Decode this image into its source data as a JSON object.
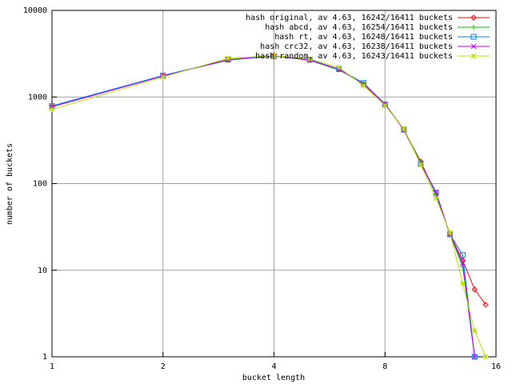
{
  "chart_data": {
    "type": "line",
    "xlabel": "bucket length",
    "ylabel": "number of buckets",
    "log_x": true,
    "log_y": true,
    "grid": true,
    "legend": "top-right",
    "xlim": [
      1,
      16
    ],
    "ylim": [
      1,
      10000
    ],
    "xticks": [
      1,
      2,
      4,
      8,
      16
    ],
    "yticks": [
      1,
      10,
      100,
      1000,
      10000
    ],
    "x": [
      1,
      2,
      3,
      4,
      5,
      6,
      7,
      8,
      9,
      10,
      11,
      12,
      13,
      14,
      15
    ],
    "series": [
      {
        "name": "hash original, av 4.63, 16242/16411 buckets",
        "color": "#ff0000",
        "marker": "diamond",
        "values": [
          780,
          1750,
          2700,
          3000,
          2700,
          2100,
          1400,
          820,
          420,
          180,
          75,
          26,
          13,
          6,
          4
        ]
      },
      {
        "name": "hash abcd, av 4.63, 16254/16411 buckets",
        "color": "#00c000",
        "marker": "plus",
        "values": [
          780,
          1760,
          2650,
          3000,
          2650,
          2050,
          1450,
          830,
          425,
          175,
          75,
          26,
          11,
          1,
          null
        ]
      },
      {
        "name": "hash rt, av 4.63, 16248/16411 buckets",
        "color": "#0080ff",
        "marker": "square",
        "values": [
          790,
          1770,
          2700,
          2950,
          2700,
          2100,
          1450,
          820,
          420,
          170,
          78,
          26,
          15,
          1,
          null
        ]
      },
      {
        "name": "hash crc32, av 4.63, 16238/16411 buckets",
        "color": "#c000ff",
        "marker": "cross",
        "values": [
          770,
          1740,
          2700,
          3000,
          2650,
          2100,
          1400,
          830,
          415,
          170,
          80,
          26,
          12,
          1,
          null
        ]
      },
      {
        "name": "hash random, av 4.63, 16243/16411 buckets",
        "color": "#b8e000",
        "marker": "star",
        "values": [
          720,
          1700,
          2800,
          3000,
          2750,
          2200,
          1350,
          800,
          430,
          165,
          68,
          27,
          7,
          2,
          1
        ]
      }
    ]
  }
}
